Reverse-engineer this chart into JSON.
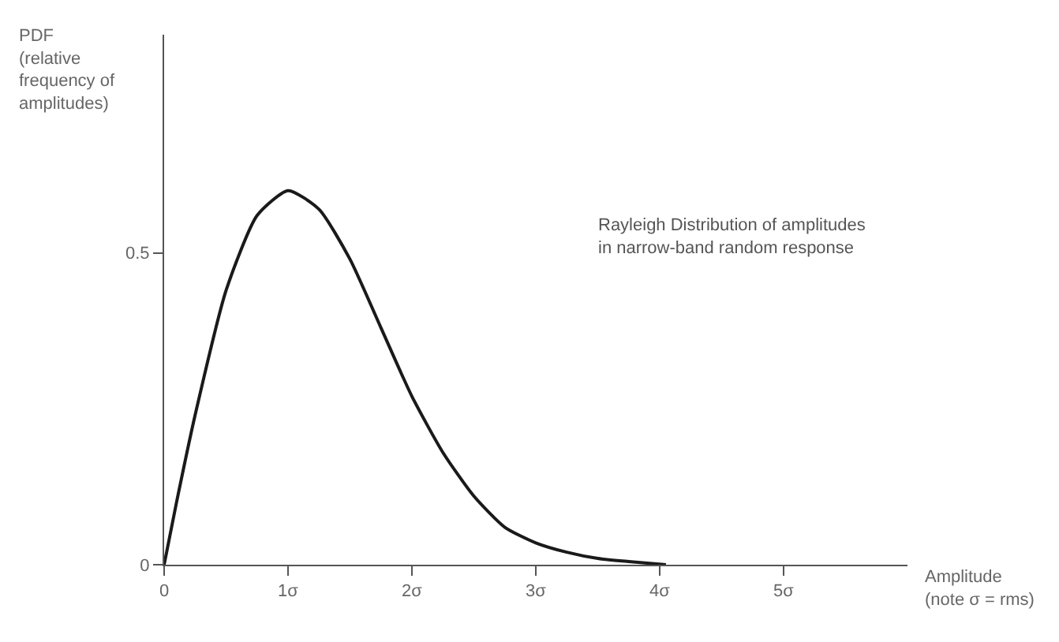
{
  "chart_data": {
    "type": "line",
    "xlabel": "Amplitude\n(note σ = rms)",
    "ylabel": "PDF\n(relative\nfrequency of\namplitudes)",
    "annotations": [
      "Rayleigh Distribution of amplitudes\nin narrow-band random response"
    ],
    "x": [
      0,
      0.1,
      0.25,
      0.5,
      0.75,
      1,
      1.25,
      1.5,
      1.75,
      2,
      2.25,
      2.5,
      2.75,
      3,
      3.25,
      3.5,
      3.75,
      4.05
    ],
    "series": [
      {
        "color": "#1a1a1a",
        "values": [
          0,
          0.1,
          0.24,
          0.44,
          0.56,
          0.6,
          0.57,
          0.49,
          0.38,
          0.27,
          0.18,
          0.11,
          0.06,
          0.035,
          0.02,
          0.01,
          0.005,
          0.0
        ]
      }
    ],
    "xlim": [
      0,
      6
    ],
    "ylim": [
      0,
      0.85
    ],
    "xticks": [
      0,
      {
        "value": 1,
        "label": "1σ"
      },
      {
        "value": 2,
        "label": "2σ"
      },
      {
        "value": 3,
        "label": "3σ"
      },
      {
        "value": 4,
        "label": "4σ"
      },
      {
        "value": 5,
        "label": "5σ"
      }
    ],
    "yticks": [
      0,
      0.5
    ],
    "grid": false,
    "marker": "none",
    "line_style": "solid"
  }
}
